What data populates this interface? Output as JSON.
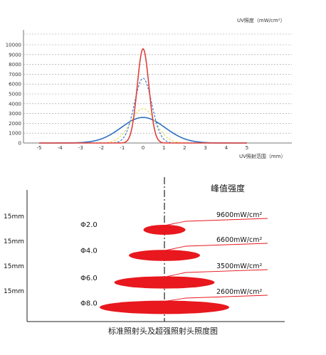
{
  "chart_data": [
    {
      "type": "line",
      "ylabel": "UV照度（mW/cm²）",
      "xlabel": "UV照射范围（mm）",
      "xlim": [
        -5,
        5
      ],
      "ylim": [
        0,
        10000
      ],
      "x_ticks": [
        "-5",
        "-4",
        "-3",
        "-2",
        "-1",
        "0",
        "1",
        "2",
        "3",
        "4",
        "5"
      ],
      "y_ticks": [
        "0",
        "1000",
        "2000",
        "3000",
        "4000",
        "5000",
        "6000",
        "7000",
        "8000",
        "9000",
        "10000"
      ],
      "grid": true,
      "series": [
        {
          "peak": 9600,
          "sigma": 0.28,
          "color": "#e0403a",
          "style": "solid"
        },
        {
          "peak": 6600,
          "sigma": 0.42,
          "color": "#4a86d4",
          "style": "dashed"
        },
        {
          "peak": 3500,
          "sigma": 0.6,
          "color": "#e8e060",
          "style": "dashed"
        },
        {
          "peak": 2600,
          "sigma": 1.05,
          "color": "#2f6fc0",
          "style": "solid"
        }
      ]
    },
    {
      "type": "bar",
      "title": "峰值强度",
      "caption": "标准照射头及超强照射头照度图",
      "rows": [
        {
          "y_label": "15mm",
          "diameter": "Φ2.0",
          "peak": "9600mW/cm²",
          "width_mm": 2.0
        },
        {
          "y_label": "15mm",
          "diameter": "Φ4.0",
          "peak": "6600mW/cm²",
          "width_mm": 4.0
        },
        {
          "y_label": "15mm",
          "diameter": "Φ6.0",
          "peak": "3500mW/cm²",
          "width_mm": 6.0
        },
        {
          "y_label": "15mm",
          "diameter": "Φ8.0",
          "peak": "2600mW/cm²",
          "width_mm": 8.0
        }
      ],
      "color": "#e8181e"
    }
  ]
}
